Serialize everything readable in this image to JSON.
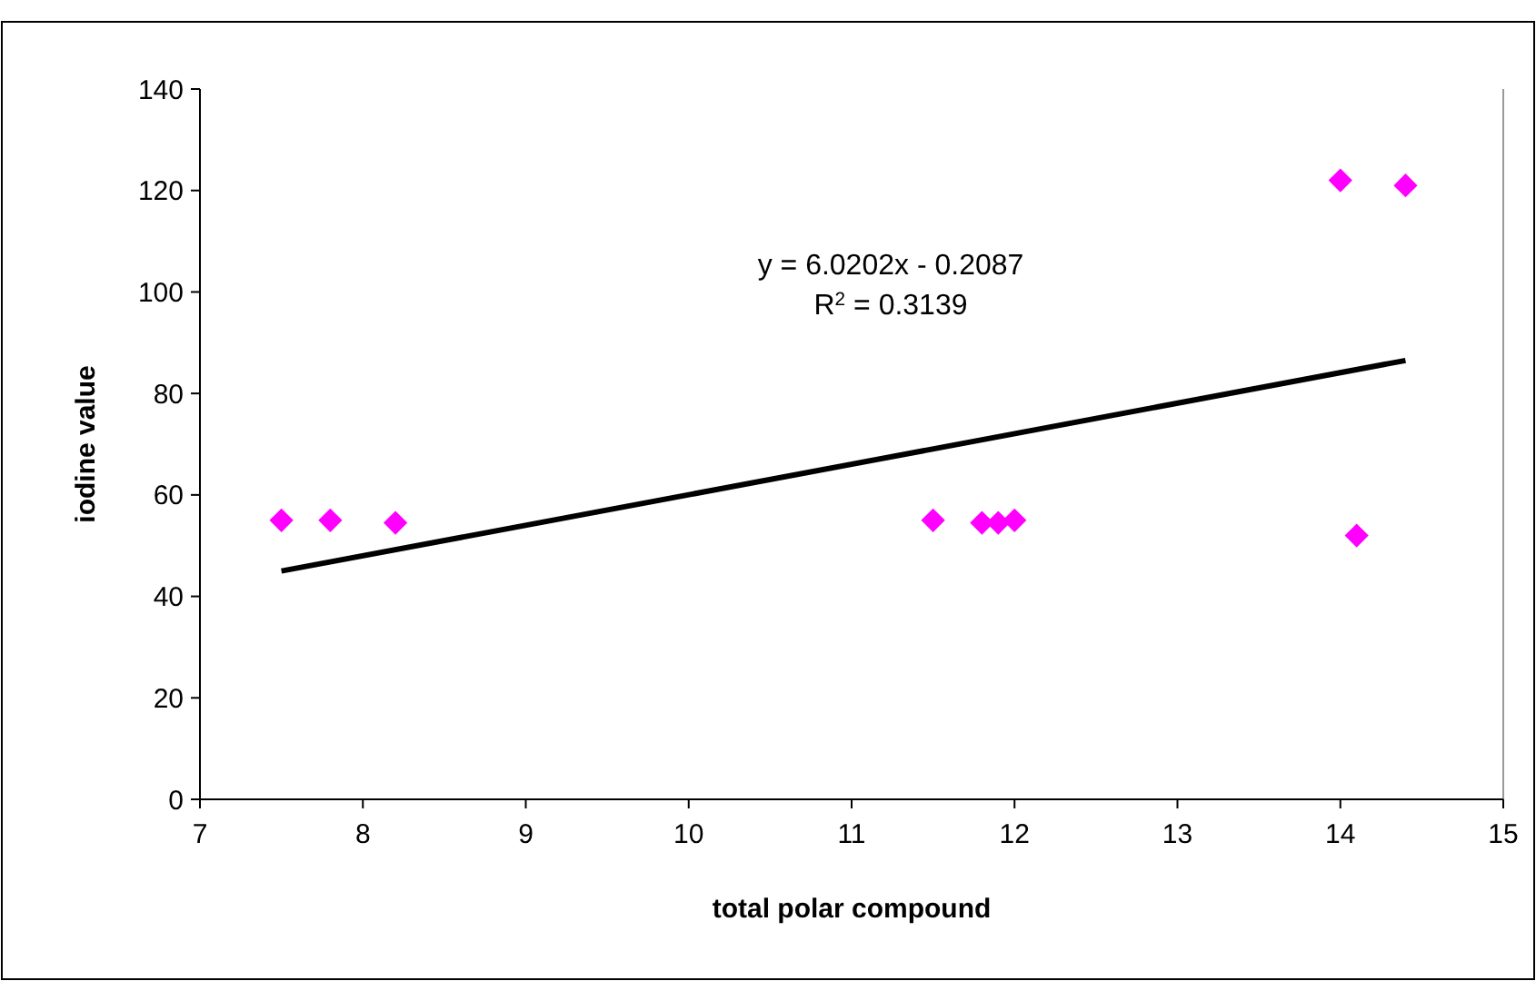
{
  "chart_data": {
    "type": "scatter",
    "xlabel": "total polar compound",
    "ylabel": "iodine value",
    "xlim": [
      7,
      15
    ],
    "xticks": [
      7,
      8,
      9,
      10,
      11,
      12,
      13,
      14,
      15
    ],
    "ylim": [
      0,
      140
    ],
    "yticks": [
      0,
      20,
      40,
      60,
      80,
      100,
      120,
      140
    ],
    "grid": false,
    "marker": "diamond",
    "series": [
      {
        "color": "#ff00ff",
        "x": [
          7.5,
          7.8,
          8.2,
          11.5,
          11.8,
          11.9,
          12,
          14,
          14.4,
          14.1
        ],
        "values": [
          55,
          55,
          54.5,
          55,
          54.5,
          54.5,
          55,
          122,
          121,
          52
        ]
      },
      {
        "type": "line",
        "color": "#000000",
        "marker": "none",
        "line_style": "solid",
        "x": [
          7.5,
          14.4
        ],
        "values": [
          45,
          86.5
        ]
      }
    ],
    "annotations": [
      "y = 6.0202x - 0.2087",
      "R$^{2}$ = 0.3139"
    ]
  }
}
